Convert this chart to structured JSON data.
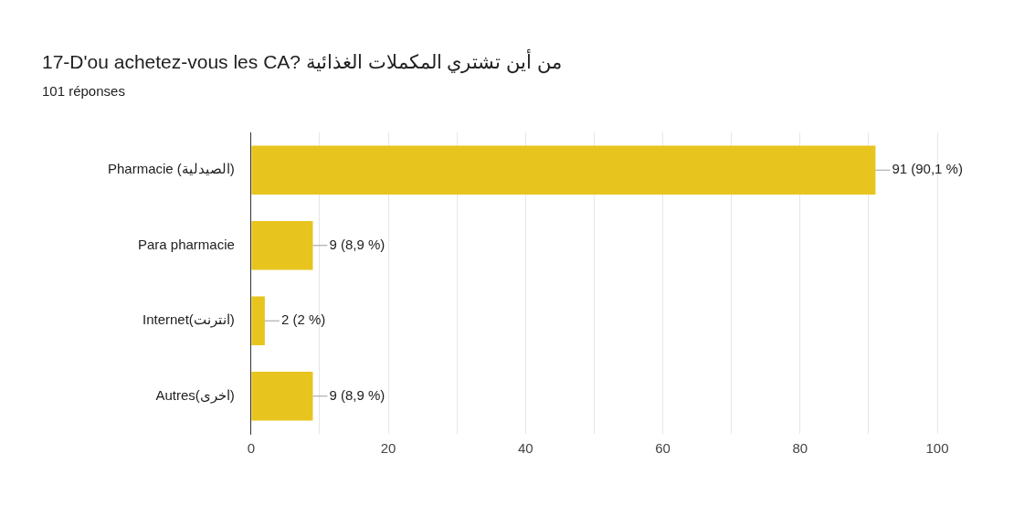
{
  "chart_data": {
    "type": "bar",
    "orientation": "horizontal",
    "title": "17-D'ou achetez-vous les CA? من أين تشتري المكملات الغذائية",
    "subtitle": "101 réponses",
    "categories": [
      "Pharmacie (الصيدلية)",
      "Para pharmacie",
      "Internet(انترنت)",
      "Autres(اخرى)"
    ],
    "values": [
      91,
      9,
      2,
      9
    ],
    "color": "#e8c41e",
    "value_labels": [
      "91 (90,1 %)",
      "9 (8,9 %)",
      "2 (2 %)",
      "9 (8,9 %)"
    ],
    "xlim": [
      0,
      100
    ],
    "xticks": [
      0,
      {
        "value": 10,
        "label": null
      },
      20,
      {
        "value": 30,
        "label": null
      },
      40,
      {
        "value": 50,
        "label": null
      },
      60,
      {
        "value": 70,
        "label": null
      },
      80,
      {
        "value": 90,
        "label": null
      },
      100
    ],
    "grid": "x",
    "legend": false
  }
}
